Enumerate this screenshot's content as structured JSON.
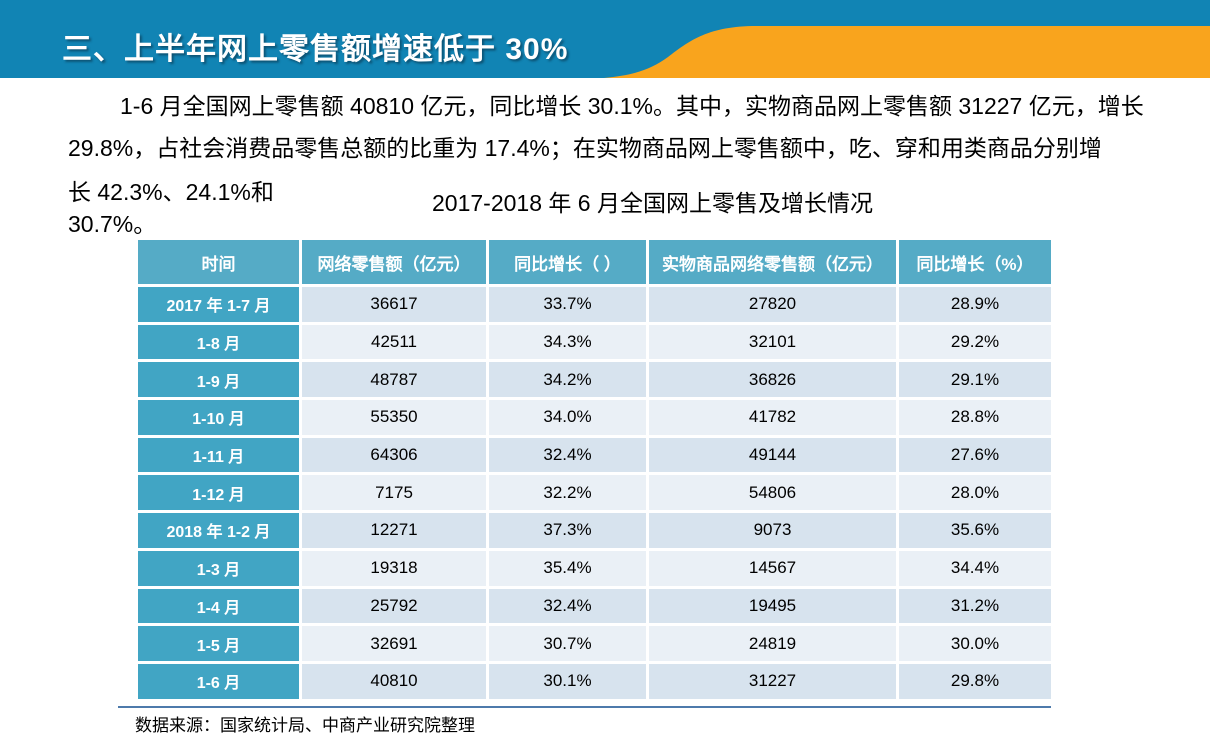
{
  "banner": {
    "title": "三、上半年网上零售额增速低于 30%",
    "background_color": "#1184B4",
    "swoosh_color": "#F9A41D",
    "title_color": "#FFFFFF"
  },
  "paragraph": {
    "line1": "1-6 月全国网上零售额 40810 亿元，同比增长 30.1%。其中，实物商品网上零售额 31227 亿元，增长",
    "line2": "29.8%，占社会消费品零售总额的比重为 17.4%；在实物商品网上零售额中，吃、穿和用类商品分别增",
    "line3": "长 42.3%、24.1%和",
    "line4": "30.7%。"
  },
  "table": {
    "title": "2017-2018 年 6 月全国网上零售及增长情况",
    "header_color": "#55ABC6",
    "row_label_color": "#41A5C4",
    "row_color_odd": "#D7E3EE",
    "row_color_even": "#EAF0F6",
    "columns": [
      "时间",
      "网络零售额（亿元）",
      "同比增长（ ）",
      "实物商品网络零售额（亿元）",
      "同比增长（%）"
    ],
    "rows": [
      [
        "2017 年 1-7 月",
        "36617",
        "33.7%",
        "27820",
        "28.9%"
      ],
      [
        "1-8 月",
        "42511",
        "34.3%",
        "32101",
        "29.2%"
      ],
      [
        "1-9 月",
        "48787",
        "34.2%",
        "36826",
        "29.1%"
      ],
      [
        "1-10 月",
        "55350",
        "34.0%",
        "41782",
        "28.8%"
      ],
      [
        "1-11 月",
        "64306",
        "32.4%",
        "49144",
        "27.6%"
      ],
      [
        "1-12 月",
        "7175",
        "32.2%",
        "54806",
        "28.0%"
      ],
      [
        "2018 年 1-2 月",
        "12271",
        "37.3%",
        "9073",
        "35.6%"
      ],
      [
        "1-3 月",
        "19318",
        "35.4%",
        "14567",
        "34.4%"
      ],
      [
        "1-4 月",
        "25792",
        "32.4%",
        "19495",
        "31.2%"
      ],
      [
        "1-5 月",
        "32691",
        "30.7%",
        "24819",
        "30.0%"
      ],
      [
        "1-6 月",
        "40810",
        "30.1%",
        "31227",
        "29.8%"
      ]
    ]
  },
  "footer": {
    "source": "数据来源：国家统计局、中商产业研究院整理"
  }
}
